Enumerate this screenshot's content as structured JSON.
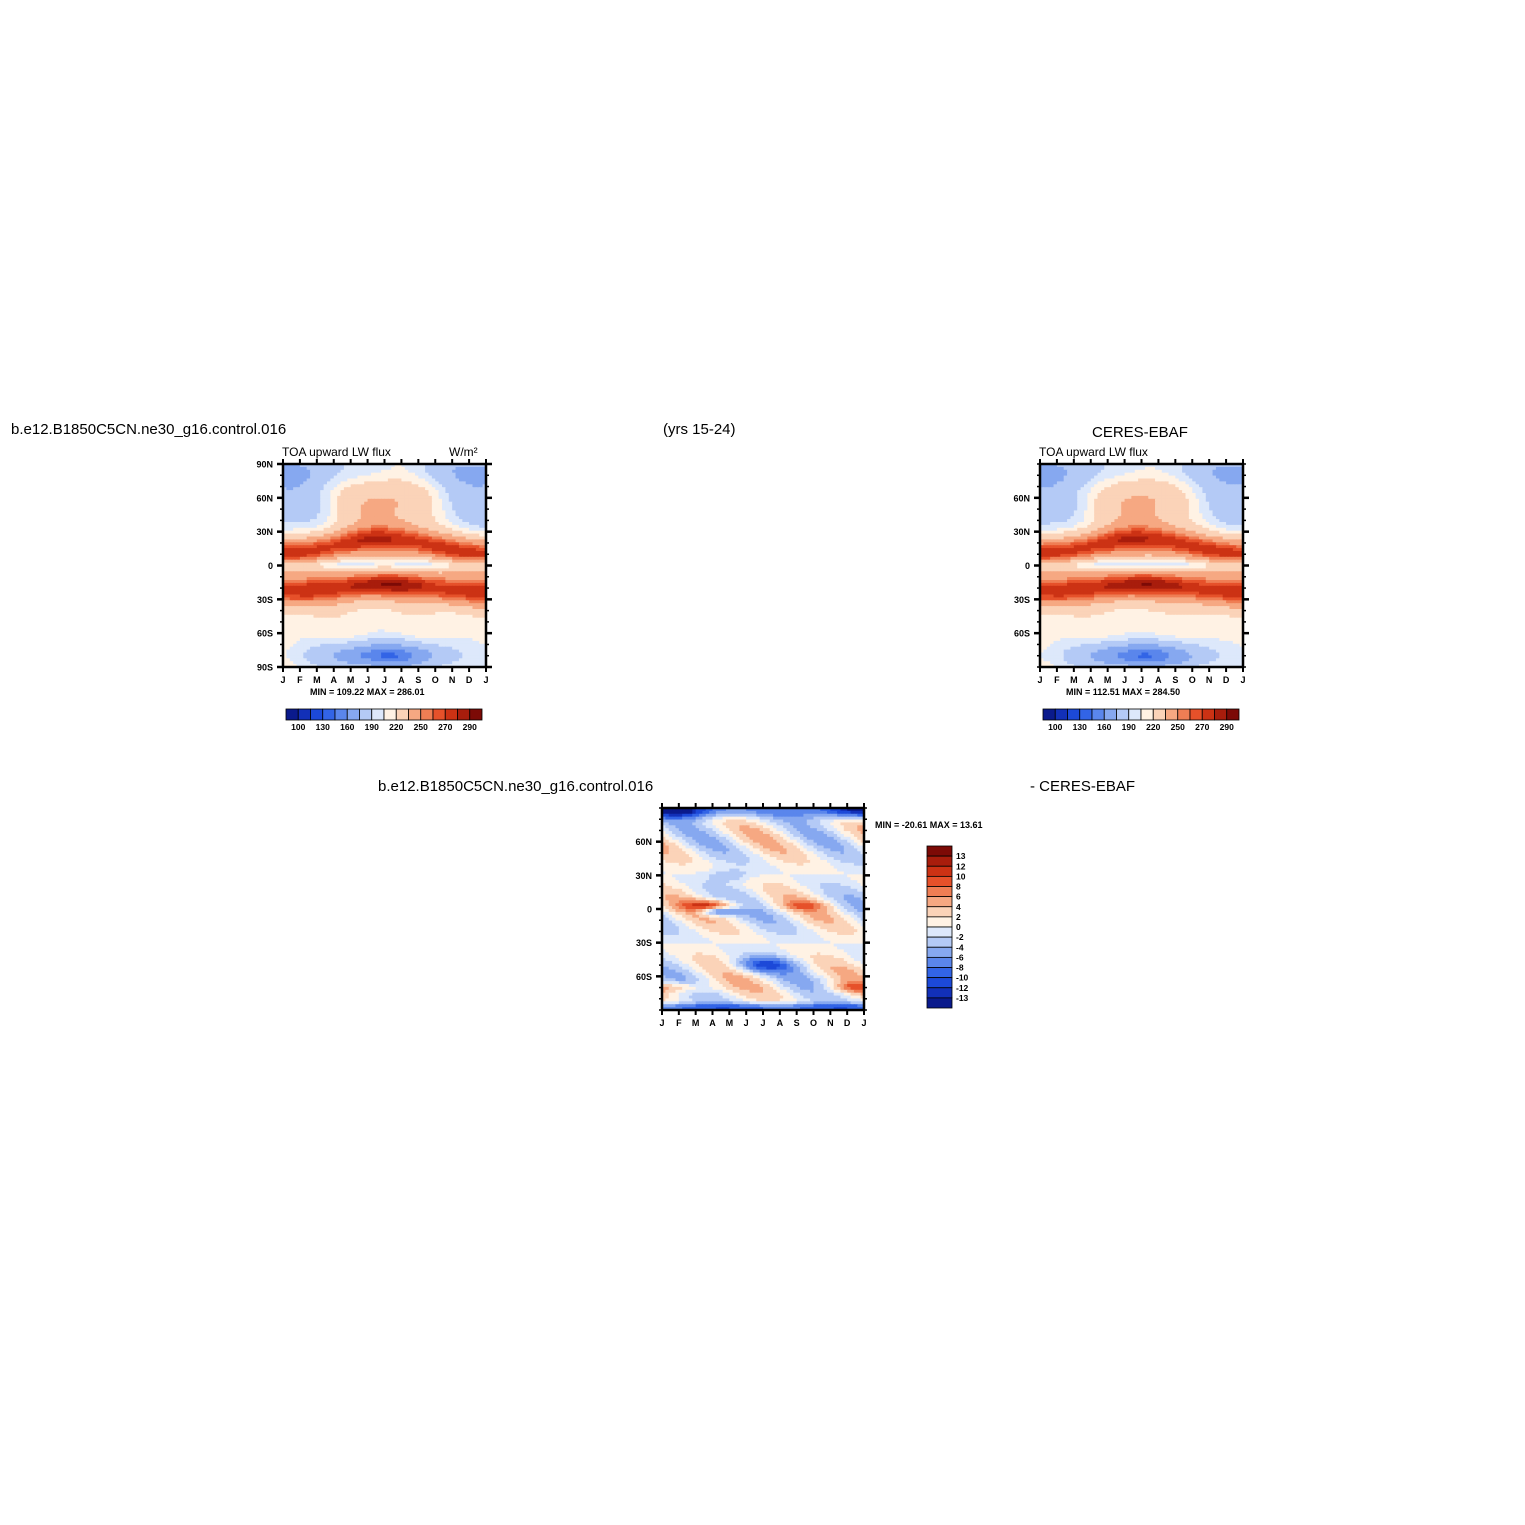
{
  "header": {
    "case_name": "b.e12.B1850C5CN.ne30_g16.control.016",
    "years": "(yrs 15-24)",
    "obs_name": "CERES-EBAF",
    "diff_left": "b.e12.B1850C5CN.ne30_g16.control.016",
    "diff_right": "- CERES-EBAF"
  },
  "colors": {
    "seq": [
      "#0a1a8c",
      "#1230b8",
      "#1c49d8",
      "#3264e6",
      "#5a86ec",
      "#86a8f0",
      "#b4caf6",
      "#dde8fb",
      "#fff2e4",
      "#fbd3b8",
      "#f6a882",
      "#ef7e54",
      "#e6512a",
      "#cc3214",
      "#a81d0c",
      "#7c0a06"
    ],
    "diff": [
      "#7c0a06",
      "#a81d0c",
      "#cc3214",
      "#e6512a",
      "#ef7e54",
      "#f6a882",
      "#fbd3b8",
      "#fff2e4",
      "#dde8fb",
      "#b4caf6",
      "#86a8f0",
      "#5a86ec",
      "#3264e6",
      "#1c49d8",
      "#1230b8",
      "#0a1a8c"
    ]
  },
  "chart_data": [
    {
      "type": "heatmap",
      "title": "TOA upward LW flux",
      "units": "W/m²",
      "x_ticks": [
        "J",
        "F",
        "M",
        "A",
        "M",
        "J",
        "J",
        "A",
        "S",
        "O",
        "N",
        "D",
        "J"
      ],
      "y_ticks": [
        "90N",
        "60N",
        "30N",
        "0",
        "30S",
        "60S",
        "90S"
      ],
      "min_max": "MIN = 109.22  MAX = 286.01",
      "min": 109.22,
      "max": 286.01,
      "colorbar_labels": [
        "100",
        "130",
        "160",
        "190",
        "220",
        "250",
        "270",
        "290"
      ],
      "levels": [
        100,
        110,
        120,
        130,
        140,
        160,
        180,
        190,
        200,
        220,
        240,
        250,
        260,
        270,
        280,
        290
      ]
    },
    {
      "type": "heatmap",
      "title": "TOA upward LW flux",
      "units": "",
      "x_ticks": [
        "J",
        "F",
        "M",
        "A",
        "M",
        "J",
        "J",
        "A",
        "S",
        "O",
        "N",
        "D",
        "J"
      ],
      "y_ticks": [
        "60N",
        "30N",
        "0",
        "30S",
        "60S"
      ],
      "min_max": "MIN = 112.51  MAX = 284.50",
      "min": 112.51,
      "max": 284.5,
      "colorbar_labels": [
        "100",
        "130",
        "160",
        "190",
        "220",
        "250",
        "270",
        "290"
      ],
      "levels": [
        100,
        110,
        120,
        130,
        140,
        160,
        180,
        190,
        200,
        220,
        240,
        250,
        260,
        270,
        280,
        290
      ]
    },
    {
      "type": "heatmap",
      "title": "",
      "x_ticks": [
        "J",
        "F",
        "M",
        "A",
        "M",
        "J",
        "J",
        "A",
        "S",
        "O",
        "N",
        "D",
        "J"
      ],
      "y_ticks": [
        "60N",
        "30N",
        "0",
        "30S",
        "60S"
      ],
      "min_max": "MIN = -20.61  MAX =   13.61",
      "min": -20.61,
      "max": 13.61,
      "colorbar_labels": [
        "13",
        "12",
        "10",
        "8",
        "6",
        "4",
        "2",
        "0",
        "-2",
        "-4",
        "-6",
        "-8",
        "-10",
        "-12",
        "-13"
      ],
      "levels": [
        13,
        12,
        10,
        8,
        6,
        4,
        2,
        0,
        -2,
        -4,
        -6,
        -8,
        -10,
        -12,
        -13
      ]
    }
  ]
}
